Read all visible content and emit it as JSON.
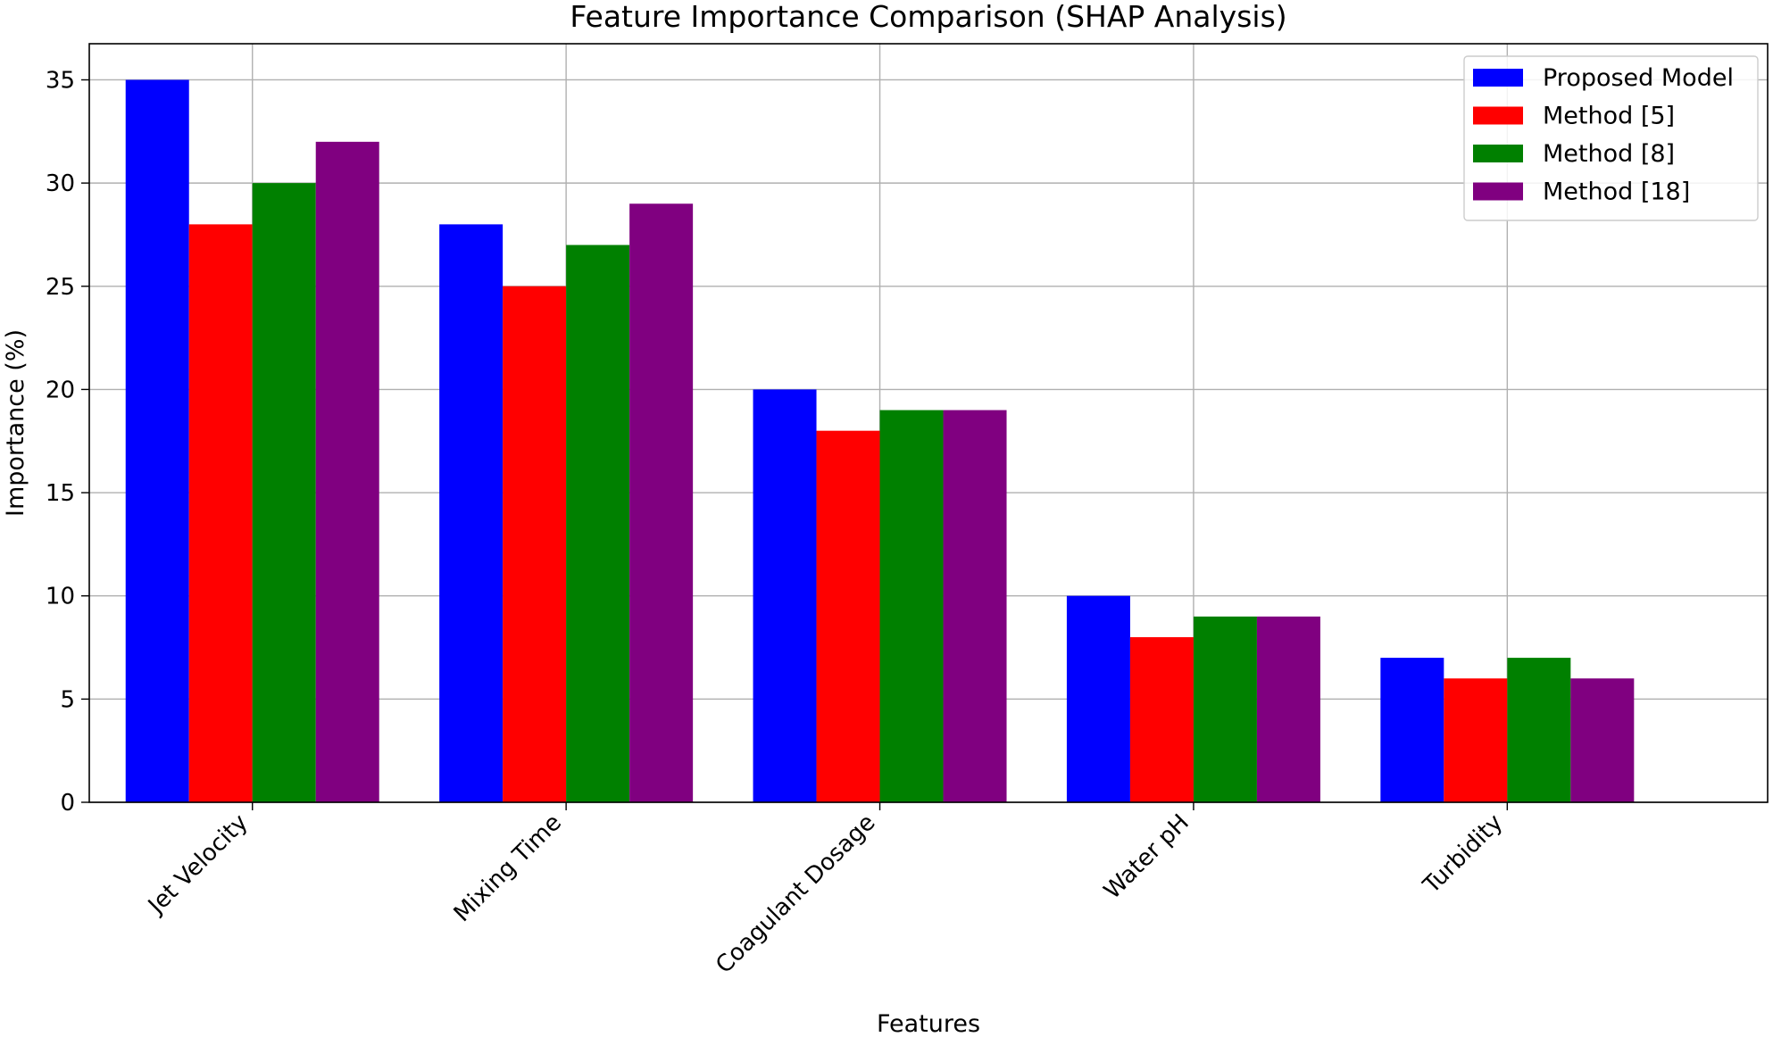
{
  "chart_data": {
    "type": "bar",
    "title": "Feature Importance Comparison (SHAP Analysis)",
    "xlabel": "Features",
    "ylabel": "Importance (%)",
    "categories": [
      "Jet Velocity",
      "Mixing Time",
      "Coagulant Dosage",
      "Water pH",
      "Turbidity"
    ],
    "series": [
      {
        "name": "Proposed Model",
        "color": "#0000ff",
        "values": [
          35,
          28,
          20,
          10,
          7
        ]
      },
      {
        "name": "Method [5]",
        "color": "#ff0000",
        "values": [
          28,
          25,
          18,
          8,
          6
        ]
      },
      {
        "name": "Method [8]",
        "color": "#008000",
        "values": [
          30,
          27,
          19,
          9,
          7
        ]
      },
      {
        "name": "Method [18]",
        "color": "#800080",
        "values": [
          32,
          29,
          19,
          9,
          6
        ]
      }
    ],
    "ylim": [
      0,
      36.75
    ],
    "yticks": [
      0,
      5,
      10,
      15,
      20,
      25,
      30,
      35
    ],
    "grid": true,
    "legend": "top-right"
  }
}
